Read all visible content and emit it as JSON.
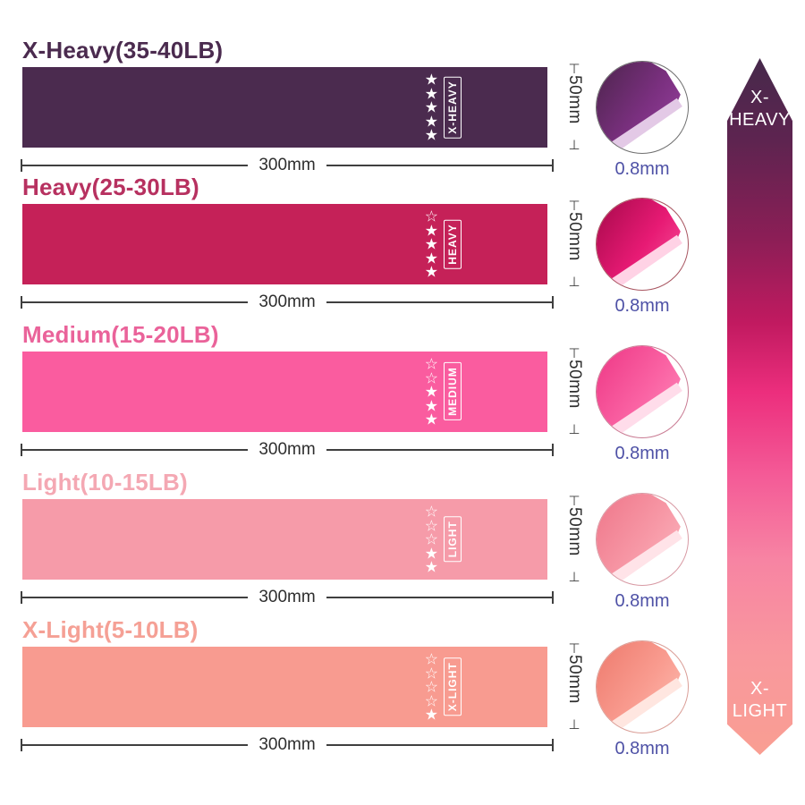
{
  "page": {
    "background": "#FFFFFF"
  },
  "dimension_caps": {
    "top": "⊤",
    "bottom": "⊥"
  },
  "star_icons": {
    "filled": "★",
    "empty": "☆"
  },
  "bands": [
    {
      "title": "X-Heavy(35-40LB)",
      "strength_label": "X-HEAVY",
      "stars_filled": 5,
      "stars_total": 5,
      "width_label": "300mm",
      "height_label": "50mm",
      "thickness_label": "0.8mm",
      "band_color": "#4B2B4F",
      "title_color": "#4B2B4F",
      "ring_color": "#6F6F6F",
      "roll_dark": "#572758",
      "roll_main": "#7B3080",
      "roll_light": "#95409D",
      "roll_edge": "#E3C9E6"
    },
    {
      "title": "Heavy(25-30LB)",
      "strength_label": "HEAVY",
      "stars_filled": 4,
      "stars_total": 5,
      "width_label": "300mm",
      "height_label": "50mm",
      "thickness_label": "0.8mm",
      "band_color": "#C52158",
      "title_color": "#B73160",
      "ring_color": "#A85560",
      "roll_dark": "#B50D54",
      "roll_main": "#E71A74",
      "roll_light": "#F64E96",
      "roll_edge": "#FFD2E5"
    },
    {
      "title": "Medium(15-20LB)",
      "strength_label": "MEDIUM",
      "stars_filled": 3,
      "stars_total": 5,
      "width_label": "300mm",
      "height_label": "50mm",
      "thickness_label": "0.8mm",
      "band_color": "#FA5C9F",
      "title_color": "#EA639A",
      "ring_color": "#C97B93",
      "roll_dark": "#F0418C",
      "roll_main": "#FA62A3",
      "roll_light": "#FD86B7",
      "roll_edge": "#FFDCEA"
    },
    {
      "title": "Light(10-15LB)",
      "strength_label": "LIGHT",
      "stars_filled": 2,
      "stars_total": 5,
      "width_label": "300mm",
      "height_label": "50mm",
      "thickness_label": "0.8mm",
      "band_color": "#F69BA9",
      "title_color": "#F4A8B3",
      "ring_color": "#D89AA4",
      "roll_dark": "#F07E90",
      "roll_main": "#F798A6",
      "roll_light": "#FBB3BC",
      "roll_edge": "#FFE3E8"
    },
    {
      "title": "X-Light(5-10LB)",
      "strength_label": "X-LIGHT",
      "stars_filled": 1,
      "stars_total": 5,
      "width_label": "300mm",
      "height_label": "50mm",
      "thickness_label": "0.8mm",
      "band_color": "#F89B90",
      "title_color": "#F5A095",
      "ring_color": "#DA9E97",
      "roll_dark": "#F08275",
      "roll_main": "#F99C90",
      "roll_light": "#FCB9AE",
      "roll_edge": "#FFE6E0"
    }
  ],
  "scale_arrow": {
    "top_label": "X-\nHEAVY",
    "bottom_label": "X-\nLIGHT",
    "gradient_stops": [
      {
        "color": "#46294B",
        "pos": 0
      },
      {
        "color": "#5E2450",
        "pos": 12
      },
      {
        "color": "#8C1E56",
        "pos": 26
      },
      {
        "color": "#C11A60",
        "pos": 38
      },
      {
        "color": "#EC2E7D",
        "pos": 48
      },
      {
        "color": "#F45B97",
        "pos": 60
      },
      {
        "color": "#F784A3",
        "pos": 72
      },
      {
        "color": "#F9989D",
        "pos": 86
      },
      {
        "color": "#F99E92",
        "pos": 100
      }
    ]
  }
}
